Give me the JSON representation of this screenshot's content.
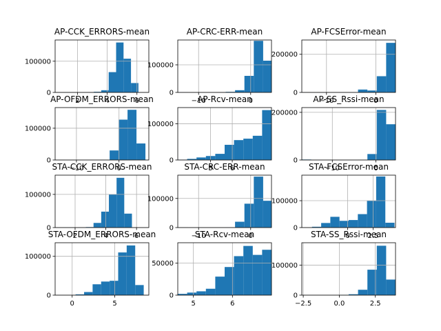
{
  "chart_data": {
    "type": "histogram-grid",
    "bar_color": "#1f77b4",
    "grid": true,
    "panels": [
      {
        "title": "AP-CCK_ERRORS-mean",
        "xlim": [
          0.5,
          6.8
        ],
        "ylim": [
          0,
          168000
        ],
        "xticks": [
          2,
          4,
          6
        ],
        "yticks": [
          0,
          100000
        ],
        "bins": [
          [
            1.1,
            1.6,
            100
          ],
          [
            1.6,
            2.1,
            0
          ],
          [
            2.1,
            2.6,
            0
          ],
          [
            2.6,
            3.1,
            200
          ],
          [
            3.1,
            3.6,
            2000
          ],
          [
            3.6,
            4.1,
            7000
          ],
          [
            4.1,
            4.6,
            65000
          ],
          [
            4.6,
            5.1,
            160000
          ],
          [
            5.1,
            5.6,
            108000
          ],
          [
            5.6,
            6.1,
            30000
          ]
        ]
      },
      {
        "title": "AP-CRC-ERR-mean",
        "xlim": [
          -14,
          4
        ],
        "ylim": [
          0,
          190000
        ],
        "xticks": [
          -10,
          0
        ],
        "yticks": [
          0,
          100000
        ],
        "bins": [
          [
            -13.8,
            -12,
            300
          ],
          [
            -12,
            -10.2,
            0
          ],
          [
            -10.2,
            -8.4,
            0
          ],
          [
            -8.4,
            -6.6,
            0
          ],
          [
            -6.6,
            -4.8,
            500
          ],
          [
            -4.8,
            -3,
            2000
          ],
          [
            -3,
            -1.2,
            8000
          ],
          [
            -1.2,
            0.6,
            60000
          ],
          [
            0.6,
            2.4,
            187000
          ],
          [
            2.4,
            4.2,
            115000
          ]
        ]
      },
      {
        "title": "AP-FCSError-mean",
        "xlim": [
          -15,
          4
        ],
        "ylim": [
          0,
          275000
        ],
        "xticks": [
          -10,
          0
        ],
        "yticks": [
          0,
          200000
        ],
        "bins": [
          [
            -15,
            -13.1,
            1000
          ],
          [
            -13.1,
            -11.2,
            0
          ],
          [
            -11.2,
            -9.3,
            0
          ],
          [
            -9.3,
            -7.4,
            0
          ],
          [
            -7.4,
            -5.5,
            0
          ],
          [
            -5.5,
            -3.6,
            0
          ],
          [
            -3.6,
            -1.7,
            15000
          ],
          [
            -1.7,
            0.2,
            10000
          ],
          [
            0.2,
            2.1,
            85000
          ],
          [
            2.1,
            4,
            260000
          ]
        ]
      },
      {
        "title": "AP-OFDM_ERRORS-mean",
        "xlim": [
          -15,
          7
        ],
        "ylim": [
          0,
          165000
        ],
        "xticks": [
          -10,
          0
        ],
        "yticks": [
          0,
          100000
        ],
        "bins": [
          [
            -14.8,
            -12.7,
            300
          ],
          [
            -12.7,
            -10.6,
            0
          ],
          [
            -10.6,
            -8.5,
            0
          ],
          [
            -8.5,
            -6.4,
            0
          ],
          [
            -6.4,
            -4.3,
            0
          ],
          [
            -4.3,
            -2.2,
            500
          ],
          [
            -2.2,
            -0.1,
            30000
          ],
          [
            -0.1,
            2,
            127000
          ],
          [
            2,
            4.1,
            158000
          ],
          [
            4.1,
            6.2,
            52000
          ]
        ]
      },
      {
        "title": "AP-Rcv-mean",
        "xlim": [
          3.5,
          7.8
        ],
        "ylim": [
          0,
          145000
        ],
        "xticks": [
          5,
          6
        ],
        "yticks": [
          0,
          100000
        ],
        "bins": [
          [
            3.5,
            3.93,
            1000
          ],
          [
            3.93,
            4.36,
            3000
          ],
          [
            4.36,
            4.79,
            7000
          ],
          [
            4.79,
            5.22,
            11000
          ],
          [
            5.22,
            5.65,
            17000
          ],
          [
            5.65,
            6.08,
            42000
          ],
          [
            6.08,
            6.51,
            55000
          ],
          [
            6.51,
            6.94,
            59000
          ],
          [
            6.94,
            7.37,
            67000
          ],
          [
            7.37,
            7.8,
            138000
          ]
        ]
      },
      {
        "title": "AP-SS_Rssi-mean",
        "xlim": [
          -17,
          4.5
        ],
        "ylim": [
          0,
          220000
        ],
        "xticks": [
          -10,
          0
        ],
        "yticks": [
          0,
          200000
        ],
        "bins": [
          [
            -17,
            -14.85,
            2000
          ],
          [
            -14.85,
            -12.7,
            0
          ],
          [
            -12.7,
            -10.55,
            0
          ],
          [
            -10.55,
            -8.4,
            0
          ],
          [
            -8.4,
            -6.25,
            0
          ],
          [
            -6.25,
            -4.1,
            0
          ],
          [
            -4.1,
            -1.95,
            500
          ],
          [
            -1.95,
            0.2,
            25000
          ],
          [
            0.2,
            2.35,
            210000
          ],
          [
            2.35,
            4.5,
            150000
          ]
        ]
      },
      {
        "title": "STA-CCK_ERRORS-mean",
        "xlim": [
          0.7,
          6.8
        ],
        "ylim": [
          0,
          158000
        ],
        "xticks": [
          2,
          4,
          6
        ],
        "yticks": [
          0,
          100000
        ],
        "bins": [
          [
            1.2,
            1.7,
            100
          ],
          [
            1.7,
            2.2,
            0
          ],
          [
            2.2,
            2.7,
            500
          ],
          [
            2.7,
            3.2,
            1500
          ],
          [
            3.2,
            3.7,
            14000
          ],
          [
            3.7,
            4.2,
            48000
          ],
          [
            4.2,
            4.7,
            100000
          ],
          [
            4.7,
            5.2,
            150000
          ],
          [
            5.2,
            5.7,
            42000
          ],
          [
            5.7,
            6.2,
            0
          ]
        ]
      },
      {
        "title": "STA-CRC-ERR-mean",
        "xlim": [
          -14,
          4
        ],
        "ylim": [
          0,
          180000
        ],
        "xticks": [
          -10,
          0
        ],
        "yticks": [
          0,
          100000
        ],
        "bins": [
          [
            -13.8,
            -12,
            300
          ],
          [
            -12,
            -10.2,
            0
          ],
          [
            -10.2,
            -8.4,
            0
          ],
          [
            -8.4,
            -6.6,
            0
          ],
          [
            -6.6,
            -4.8,
            0
          ],
          [
            -4.8,
            -3,
            200
          ],
          [
            -3,
            -1.2,
            20000
          ],
          [
            -1.2,
            0.6,
            82000
          ],
          [
            0.6,
            2.4,
            175000
          ],
          [
            2.4,
            4.2,
            92000
          ]
        ]
      },
      {
        "title": "STA-FCSError-mean",
        "xlim": [
          -4.5,
          4.7
        ],
        "ylim": [
          0,
          195000
        ],
        "xticks": [
          0,
          2.5
        ],
        "yticks": [
          0,
          100000
        ],
        "bins": [
          [
            -4.4,
            -3.5,
            100
          ],
          [
            -3.5,
            -2.6,
            3000
          ],
          [
            -2.6,
            -1.7,
            17000
          ],
          [
            -1.7,
            -0.8,
            40000
          ],
          [
            -0.8,
            0.1,
            25000
          ],
          [
            0.1,
            1,
            28000
          ],
          [
            1,
            1.9,
            50000
          ],
          [
            1.9,
            2.8,
            100000
          ],
          [
            2.8,
            3.7,
            190000
          ],
          [
            3.7,
            4.6,
            18000
          ]
        ]
      },
      {
        "title": "STA-OFDM_ERRORS-mean",
        "xlim": [
          -2,
          9
        ],
        "ylim": [
          0,
          135000
        ],
        "xticks": [
          0,
          5
        ],
        "yticks": [
          0,
          100000
        ],
        "bins": [
          [
            -1.6,
            -0.6,
            100
          ],
          [
            -0.6,
            0.4,
            0
          ],
          [
            0.4,
            1.4,
            2000
          ],
          [
            1.4,
            2.4,
            8000
          ],
          [
            2.4,
            3.4,
            28000
          ],
          [
            3.4,
            4.4,
            35000
          ],
          [
            4.4,
            5.4,
            37000
          ],
          [
            5.4,
            6.4,
            110000
          ],
          [
            6.4,
            7.4,
            128000
          ],
          [
            7.4,
            8.4,
            26000
          ]
        ]
      },
      {
        "title": "STA-Rcv-mean",
        "xlim": [
          4.6,
          7.0
        ],
        "ylim": [
          0,
          82000
        ],
        "xticks": [
          5,
          6
        ],
        "yticks": [
          0,
          50000
        ],
        "bins": [
          [
            4.6,
            4.84,
            2000
          ],
          [
            4.84,
            5.08,
            4000
          ],
          [
            5.08,
            5.32,
            6000
          ],
          [
            5.32,
            5.56,
            10000
          ],
          [
            5.56,
            5.8,
            29000
          ],
          [
            5.8,
            6.04,
            44000
          ],
          [
            6.04,
            6.28,
            61000
          ],
          [
            6.28,
            6.52,
            77000
          ],
          [
            6.52,
            6.76,
            63000
          ],
          [
            6.76,
            7,
            71000
          ]
        ]
      },
      {
        "title": "STA-SS_Rssi-mean",
        "xlim": [
          -2.6,
          3.9
        ],
        "ylim": [
          0,
          175000
        ],
        "xticks": [
          -2.5,
          0.0,
          2.5
        ],
        "xtick_labels": [
          "−2.5",
          "0.0",
          "2.5"
        ],
        "yticks": [
          0,
          100000
        ],
        "bins": [
          [
            -2.6,
            -1.95,
            100
          ],
          [
            -1.95,
            -1.3,
            0
          ],
          [
            -1.3,
            -0.65,
            0
          ],
          [
            -0.65,
            0,
            0
          ],
          [
            0,
            0.65,
            500
          ],
          [
            0.65,
            1.3,
            3000
          ],
          [
            1.3,
            1.95,
            18000
          ],
          [
            1.95,
            2.6,
            85000
          ],
          [
            2.6,
            3.25,
            165000
          ],
          [
            3.25,
            3.9,
            52000
          ]
        ]
      }
    ]
  }
}
